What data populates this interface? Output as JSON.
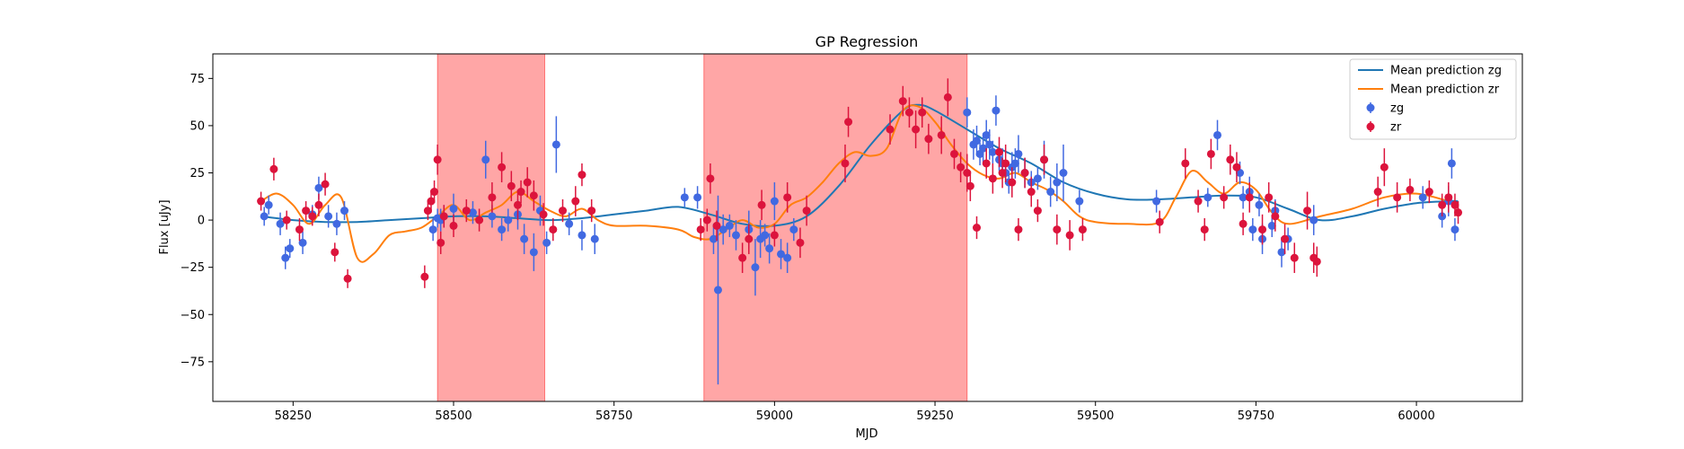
{
  "chart_data": {
    "type": "scatter",
    "title": "GP Regression",
    "xlabel": "MJD",
    "ylabel": "Flux [uJy]",
    "xlim": [
      58125,
      60165
    ],
    "ylim": [
      -96,
      88
    ],
    "xticks": [
      58250,
      58500,
      58750,
      59000,
      59250,
      59500,
      59750,
      60000
    ],
    "yticks": [
      -75,
      -50,
      -25,
      0,
      25,
      50,
      75
    ],
    "grid": false,
    "legend_position": "top-right",
    "colors": {
      "zg_points": "#4169e1",
      "zr_points": "#dc143c",
      "zg_line": "#1f77b4",
      "zr_line": "#ff7f0e",
      "shade": "#ff0000"
    },
    "shaded_regions": [
      {
        "x0": 58475,
        "x1": 58642
      },
      {
        "x0": 58890,
        "x1": 59300
      }
    ],
    "lines": [
      {
        "name": "Mean prediction zg",
        "x": [
          58200,
          58250,
          58300,
          58350,
          58400,
          58450,
          58500,
          58550,
          58600,
          58650,
          58700,
          58750,
          58800,
          58850,
          58900,
          58950,
          59000,
          59050,
          59100,
          59150,
          59200,
          59225,
          59250,
          59300,
          59350,
          59400,
          59450,
          59500,
          59550,
          59600,
          59650,
          59700,
          59750,
          59800,
          59850,
          59900,
          59950,
          60000,
          60050,
          60065
        ],
        "y": [
          2,
          0,
          -1,
          -1,
          0,
          1,
          2,
          2,
          1,
          0,
          1,
          3,
          5,
          7,
          3,
          -2,
          -3,
          2,
          18,
          40,
          58,
          61,
          58,
          48,
          38,
          30,
          20,
          14,
          11,
          11,
          12,
          13,
          12,
          6,
          0,
          2,
          6,
          9,
          10,
          10
        ]
      },
      {
        "name": "Mean prediction zr",
        "x": [
          58200,
          58225,
          58250,
          58275,
          58300,
          58325,
          58350,
          58375,
          58400,
          58425,
          58450,
          58475,
          58500,
          58525,
          58550,
          58575,
          58600,
          58625,
          58650,
          58675,
          58700,
          58725,
          58750,
          58800,
          58850,
          58875,
          58900,
          58925,
          58950,
          58975,
          59000,
          59025,
          59050,
          59075,
          59100,
          59125,
          59150,
          59175,
          59200,
          59225,
          59250,
          59275,
          59300,
          59325,
          59350,
          59375,
          59400,
          59425,
          59450,
          59475,
          59500,
          59550,
          59600,
          59625,
          59650,
          59675,
          59700,
          59725,
          59750,
          59775,
          59800,
          59850,
          59900,
          59950,
          60000,
          60050,
          60065
        ],
        "y": [
          10,
          14,
          8,
          -2,
          8,
          12,
          -20,
          -18,
          -8,
          -6,
          -4,
          2,
          8,
          0,
          4,
          8,
          15,
          10,
          5,
          2,
          6,
          0,
          -3,
          -3,
          -5,
          -9,
          -10,
          -5,
          0,
          -4,
          -2,
          8,
          12,
          20,
          30,
          36,
          34,
          38,
          58,
          60,
          52,
          40,
          30,
          24,
          22,
          25,
          20,
          16,
          10,
          2,
          -1,
          -2,
          -1,
          12,
          26,
          20,
          14,
          20,
          16,
          4,
          -2,
          2,
          6,
          12,
          14,
          10,
          8
        ]
      }
    ],
    "series": [
      {
        "name": "zg",
        "x": [
          58205,
          58212,
          58230,
          58238,
          58245,
          58265,
          58280,
          58290,
          58305,
          58318,
          58330,
          58468,
          58475,
          58480,
          58485,
          58500,
          58530,
          58550,
          58560,
          58575,
          58585,
          58600,
          58610,
          58625,
          58635,
          58645,
          58660,
          58680,
          58700,
          58720,
          58860,
          58880,
          58905,
          58912,
          58920,
          58930,
          58940,
          58960,
          58970,
          58978,
          58985,
          58992,
          59000,
          59010,
          59020,
          59030,
          59300,
          59310,
          59315,
          59320,
          59325,
          59330,
          59335,
          59340,
          59345,
          59350,
          59355,
          59360,
          59365,
          59370,
          59375,
          59380,
          59390,
          59400,
          59410,
          59420,
          59430,
          59440,
          59450,
          59475,
          59595,
          59675,
          59690,
          59725,
          59730,
          59740,
          59745,
          59755,
          59760,
          59775,
          59780,
          59790,
          59800,
          59840,
          60010,
          60040,
          60050,
          60055,
          60060
        ],
        "y": [
          2,
          8,
          -2,
          -20,
          -15,
          -12,
          3,
          17,
          2,
          -2,
          5,
          -5,
          1,
          0,
          2,
          6,
          4,
          32,
          2,
          -5,
          0,
          3,
          -10,
          -17,
          5,
          -12,
          40,
          -2,
          -8,
          -10,
          12,
          12,
          -10,
          -37,
          -5,
          -3,
          -8,
          -5,
          -25,
          -10,
          -8,
          -15,
          10,
          -18,
          -20,
          -5,
          57,
          40,
          42,
          35,
          38,
          45,
          40,
          36,
          58,
          32,
          30,
          25,
          20,
          28,
          30,
          35,
          25,
          20,
          22,
          32,
          15,
          20,
          25,
          10,
          10,
          12,
          45,
          25,
          12,
          15,
          -5,
          8,
          -10,
          -3,
          5,
          -17,
          -10,
          0,
          12,
          2,
          10,
          30,
          -5
        ],
        "err": [
          5,
          5,
          6,
          6,
          5,
          6,
          5,
          6,
          6,
          6,
          5,
          6,
          5,
          6,
          6,
          8,
          6,
          10,
          6,
          6,
          6,
          8,
          8,
          10,
          8,
          6,
          15,
          6,
          8,
          8,
          5,
          6,
          8,
          50,
          8,
          6,
          8,
          10,
          15,
          10,
          6,
          8,
          10,
          8,
          8,
          6,
          8,
          8,
          8,
          6,
          8,
          8,
          8,
          6,
          8,
          6,
          8,
          6,
          6,
          8,
          8,
          10,
          8,
          6,
          6,
          10,
          8,
          10,
          15,
          6,
          6,
          5,
          8,
          6,
          6,
          8,
          6,
          6,
          8,
          6,
          6,
          8,
          6,
          8,
          6,
          6,
          8,
          8,
          6
        ]
      },
      {
        "name": "zr",
        "x": [
          58200,
          58220,
          58240,
          58260,
          58270,
          58280,
          58290,
          58300,
          58315,
          58335,
          58455,
          58460,
          58465,
          58470,
          58475,
          58480,
          58485,
          58500,
          58520,
          58540,
          58560,
          58575,
          58590,
          58600,
          58605,
          58615,
          58625,
          58640,
          58655,
          58670,
          58690,
          58700,
          58715,
          58885,
          58895,
          58900,
          58910,
          58950,
          58960,
          58980,
          59000,
          59020,
          59040,
          59050,
          59110,
          59115,
          59180,
          59200,
          59210,
          59220,
          59230,
          59240,
          59260,
          59270,
          59280,
          59290,
          59300,
          59305,
          59315,
          59330,
          59340,
          59350,
          59355,
          59360,
          59370,
          59380,
          59390,
          59400,
          59410,
          59420,
          59440,
          59460,
          59480,
          59600,
          59640,
          59660,
          59670,
          59680,
          59700,
          59710,
          59720,
          59730,
          59740,
          59760,
          59770,
          59780,
          59795,
          59810,
          59830,
          59840,
          59845,
          59940,
          59950,
          59970,
          59990,
          60020,
          60040,
          60050,
          60060,
          60065
        ],
        "y": [
          10,
          27,
          0,
          -5,
          5,
          2,
          8,
          19,
          -17,
          -31,
          -30,
          5,
          10,
          15,
          32,
          -12,
          2,
          -3,
          5,
          0,
          12,
          28,
          18,
          8,
          15,
          20,
          13,
          3,
          -5,
          5,
          10,
          24,
          5,
          -5,
          0,
          22,
          -3,
          -20,
          -10,
          8,
          -8,
          12,
          -12,
          5,
          30,
          52,
          48,
          63,
          57,
          48,
          57,
          43,
          45,
          65,
          35,
          28,
          25,
          18,
          -4,
          30,
          22,
          36,
          25,
          30,
          20,
          -5,
          25,
          15,
          5,
          32,
          -5,
          -8,
          -5,
          -1,
          30,
          10,
          -5,
          35,
          12,
          32,
          28,
          -2,
          12,
          -5,
          12,
          2,
          -10,
          -20,
          5,
          -20,
          -22,
          15,
          28,
          12,
          16,
          15,
          8,
          12,
          8,
          4
        ],
        "err": [
          5,
          6,
          5,
          6,
          5,
          5,
          6,
          6,
          5,
          5,
          6,
          5,
          6,
          6,
          8,
          6,
          6,
          6,
          6,
          6,
          8,
          8,
          8,
          8,
          6,
          8,
          8,
          6,
          6,
          6,
          8,
          6,
          6,
          6,
          6,
          8,
          8,
          8,
          8,
          8,
          6,
          8,
          8,
          8,
          10,
          8,
          8,
          8,
          8,
          10,
          8,
          8,
          10,
          10,
          8,
          8,
          10,
          8,
          6,
          8,
          8,
          8,
          8,
          10,
          8,
          6,
          8,
          8,
          6,
          8,
          8,
          8,
          6,
          6,
          8,
          6,
          6,
          8,
          6,
          8,
          8,
          6,
          8,
          8,
          8,
          8,
          8,
          8,
          10,
          8,
          8,
          8,
          10,
          8,
          6,
          6,
          6,
          8,
          6,
          6
        ]
      }
    ]
  }
}
